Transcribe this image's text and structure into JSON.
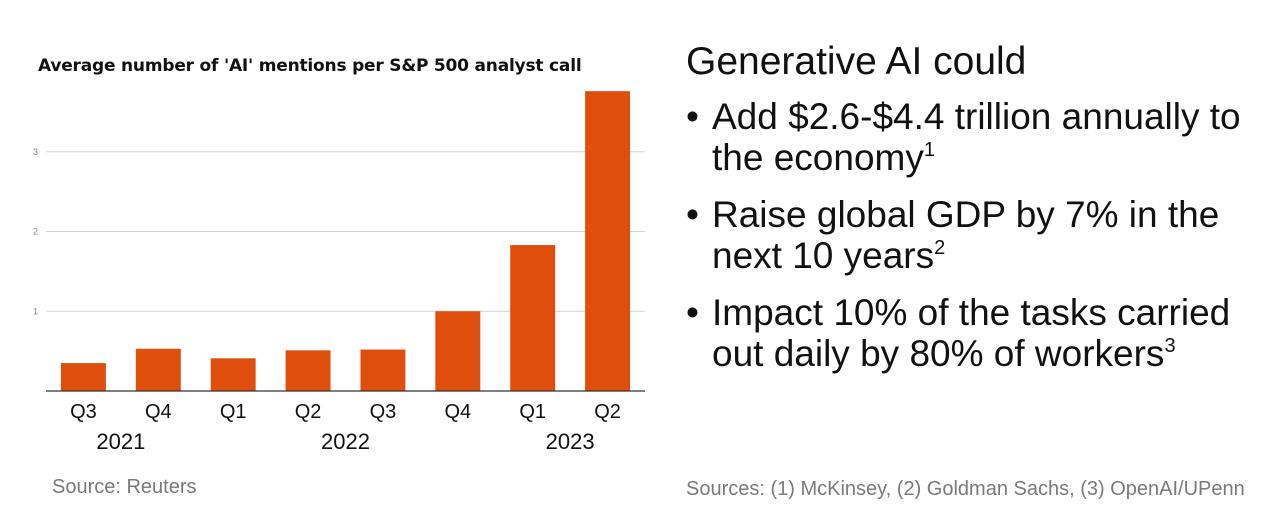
{
  "chart_data": {
    "type": "bar",
    "title": "Average number of 'AI' mentions per S&P 500 analyst call",
    "categories": [
      "Q3",
      "Q4",
      "Q1",
      "Q2",
      "Q3",
      "Q4",
      "Q1",
      "Q2"
    ],
    "years": [
      {
        "label": "2021",
        "from": 0,
        "to": 1
      },
      {
        "label": "2022",
        "from": 2,
        "to": 5
      },
      {
        "label": "2023",
        "from": 6,
        "to": 7
      }
    ],
    "values": [
      0.35,
      0.53,
      0.41,
      0.51,
      0.52,
      1.0,
      1.83,
      3.76
    ],
    "yticks": [
      1,
      2,
      3
    ],
    "ylim": [
      0,
      3.9
    ],
    "bar_color": "#e04e0e",
    "grid": true
  },
  "sources": {
    "left": "Source: Reuters",
    "right": "Sources: (1) McKinsey, (2) Goldman Sachs, (3) OpenAI/UPenn"
  },
  "panel": {
    "headline": "Generative AI could",
    "bullet_char": "•",
    "bullets": [
      {
        "text": "Add $2.6-$4.4 trillion annually to the economy",
        "ref": "1"
      },
      {
        "text": "Raise global GDP by 7% in the next 10 years",
        "ref": "2"
      },
      {
        "text": "Impact 10% of the tasks carried out daily by 80% of workers",
        "ref": "3"
      }
    ]
  }
}
